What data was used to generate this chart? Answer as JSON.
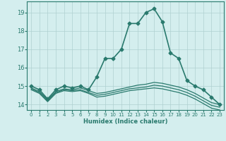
{
  "xlabel": "Humidex (Indice chaleur)",
  "x": [
    0,
    1,
    2,
    3,
    4,
    5,
    6,
    7,
    8,
    9,
    10,
    11,
    12,
    13,
    14,
    15,
    16,
    17,
    18,
    19,
    20,
    21,
    22,
    23
  ],
  "lines": [
    {
      "y": [
        15.0,
        14.8,
        14.3,
        14.8,
        15.0,
        14.9,
        15.0,
        14.8,
        15.5,
        16.5,
        16.5,
        17.0,
        18.4,
        18.4,
        19.0,
        19.2,
        18.5,
        16.8,
        16.5,
        15.3,
        15.0,
        14.8,
        14.4,
        14.0
      ],
      "color": "#2a7a6e",
      "linewidth": 1.2,
      "marker": "D",
      "markersize": 2.5
    },
    {
      "y": [
        14.9,
        14.7,
        14.25,
        14.7,
        14.85,
        14.8,
        14.9,
        14.75,
        14.6,
        14.65,
        14.75,
        14.85,
        14.95,
        15.05,
        15.1,
        15.2,
        15.15,
        15.05,
        14.95,
        14.8,
        14.6,
        14.35,
        14.1,
        14.0
      ],
      "color": "#2a7a6e",
      "linewidth": 0.9,
      "marker": null,
      "markersize": 0
    },
    {
      "y": [
        14.85,
        14.65,
        14.2,
        14.65,
        14.8,
        14.75,
        14.8,
        14.65,
        14.5,
        14.55,
        14.65,
        14.75,
        14.85,
        14.9,
        14.95,
        15.05,
        15.0,
        14.9,
        14.8,
        14.65,
        14.45,
        14.2,
        13.95,
        13.85
      ],
      "color": "#2a7a6e",
      "linewidth": 0.9,
      "marker": null,
      "markersize": 0
    },
    {
      "y": [
        14.8,
        14.6,
        14.15,
        14.6,
        14.75,
        14.7,
        14.75,
        14.6,
        14.4,
        14.45,
        14.55,
        14.65,
        14.75,
        14.8,
        14.85,
        14.9,
        14.85,
        14.75,
        14.65,
        14.5,
        14.3,
        14.05,
        13.8,
        13.7
      ],
      "color": "#2a7a6e",
      "linewidth": 0.9,
      "marker": null,
      "markersize": 0
    }
  ],
  "ylim": [
    13.7,
    19.6
  ],
  "yticks": [
    14,
    15,
    16,
    17,
    18,
    19
  ],
  "xlim": [
    -0.5,
    23.5
  ],
  "background_color": "#d4eeee",
  "grid_color": "#b0d0d0",
  "tick_color": "#2a7a6e",
  "spine_color": "#2a7a6e"
}
